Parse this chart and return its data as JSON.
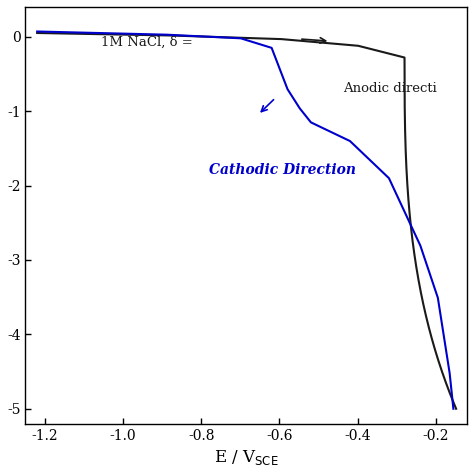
{
  "title": "",
  "xlabel": "E / V$_{SCE}$",
  "ylabel": "",
  "xlim": [
    -1.25,
    -0.12
  ],
  "ylim": [
    -5.2,
    0.4
  ],
  "yticks": [
    0,
    -1,
    -2,
    -3,
    -4,
    -5
  ],
  "ytick_labels": [
    "0",
    "-1",
    "-2",
    "-3",
    "-4",
    "-5"
  ],
  "xticks": [
    -1.2,
    -1.0,
    -0.8,
    -0.6,
    -0.4,
    -0.2
  ],
  "annotation_nacl": "1M NaCl, δ =",
  "annotation_anodic": "Anodic directi",
  "annotation_cathodic": "Cathodic Direction",
  "black_color": "#1a1a1a",
  "blue_color": "#0000cc",
  "background_color": "#ffffff"
}
